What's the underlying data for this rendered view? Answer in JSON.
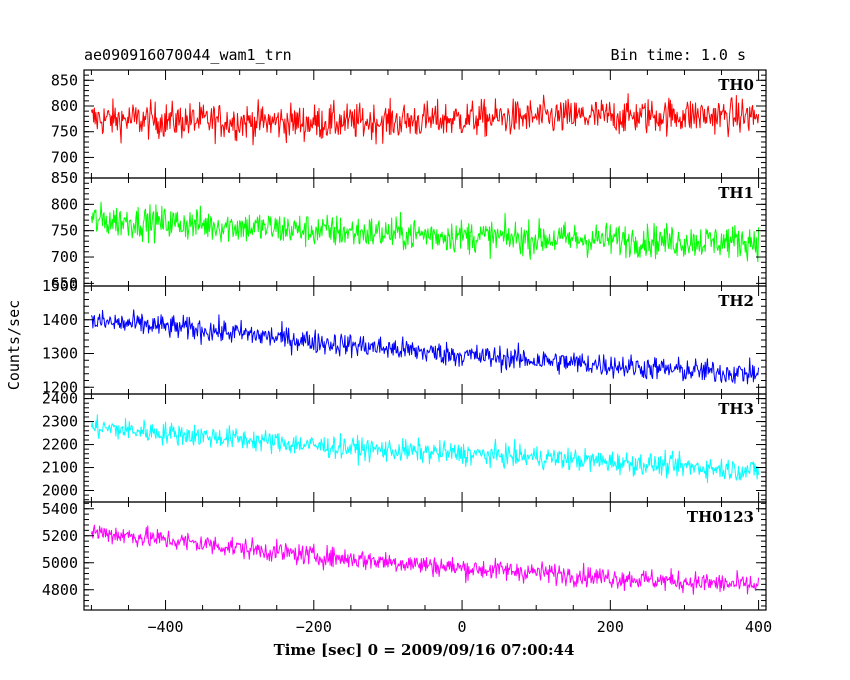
{
  "chart_data": {
    "type": "line",
    "title": "ae090916070044_wam1_trn",
    "subtitle": "Bin time: 1.0 s",
    "xlabel": "Time [sec] 0 = 2009/09/16 07:00:44",
    "ylabel": "Counts/sec",
    "xlim": [
      -510,
      410
    ],
    "x_ticks": [
      -400,
      -200,
      0,
      200,
      400
    ],
    "x_range": [
      -500,
      400
    ],
    "grid": false,
    "series": [
      {
        "name": "TH0",
        "color": "#ff0000",
        "ylim": [
          660,
          870
        ],
        "y_ticks": [
          700,
          750,
          800,
          850
        ],
        "x": [
          -500,
          -400,
          -300,
          -200,
          -100,
          0,
          100,
          200,
          300,
          400
        ],
        "y": [
          775,
          772,
          770,
          768,
          770,
          775,
          778,
          780,
          782,
          780
        ],
        "spread": 50
      },
      {
        "name": "TH1",
        "color": "#00ff00",
        "ylim": [
          645,
          850
        ],
        "y_ticks": [
          650,
          700,
          750,
          800,
          850
        ],
        "x": [
          -500,
          -400,
          -300,
          -200,
          -100,
          0,
          100,
          200,
          300,
          400
        ],
        "y": [
          770,
          765,
          758,
          750,
          745,
          740,
          735,
          733,
          730,
          730
        ],
        "spread": 45
      },
      {
        "name": "TH2",
        "color": "#0000ff",
        "ylim": [
          1180,
          1500
        ],
        "y_ticks": [
          1200,
          1300,
          1400,
          1500
        ],
        "x": [
          -500,
          -400,
          -300,
          -200,
          -100,
          0,
          100,
          200,
          300,
          400
        ],
        "y": [
          1395,
          1380,
          1360,
          1335,
          1315,
          1295,
          1280,
          1265,
          1250,
          1240
        ],
        "spread": 50
      },
      {
        "name": "TH3",
        "color": "#00ffff",
        "ylim": [
          1950,
          2420
        ],
        "y_ticks": [
          2000,
          2100,
          2200,
          2300,
          2400
        ],
        "x": [
          -500,
          -400,
          -300,
          -200,
          -100,
          0,
          100,
          200,
          300,
          400
        ],
        "y": [
          2275,
          2250,
          2225,
          2195,
          2175,
          2160,
          2145,
          2125,
          2105,
          2085
        ],
        "spread": 70
      },
      {
        "name": "TH0123",
        "color": "#ff00ff",
        "ylim": [
          4650,
          5450
        ],
        "y_ticks": [
          4800,
          5000,
          5200,
          5400
        ],
        "x": [
          -500,
          -400,
          -300,
          -200,
          -100,
          0,
          100,
          200,
          300,
          400
        ],
        "y": [
          5230,
          5170,
          5110,
          5050,
          5010,
          4960,
          4930,
          4890,
          4860,
          4830
        ],
        "spread": 110
      }
    ]
  }
}
